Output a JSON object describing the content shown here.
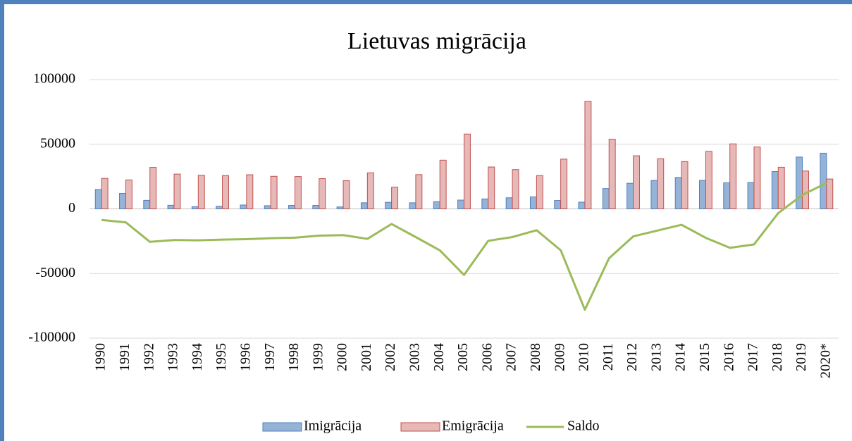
{
  "chart_data": {
    "type": "bar-line",
    "title": "Lietuvas migrācija",
    "categories": [
      "1990",
      "1991",
      "1992",
      "1993",
      "1994",
      "1995",
      "1996",
      "1997",
      "1998",
      "1999",
      "2000",
      "2001",
      "2002",
      "2003",
      "2004",
      "2005",
      "2006",
      "2007",
      "2008",
      "2009",
      "2010",
      "2011",
      "2012",
      "2013",
      "2014",
      "2015",
      "2016",
      "2017",
      "2018",
      "2019",
      "2020*"
    ],
    "series": [
      {
        "name": "Imigrācija",
        "type": "bar",
        "color": "#95b3d7",
        "edge": "#4f81bd",
        "values": [
          15000,
          12000,
          6600,
          2800,
          1700,
          2000,
          3000,
          2500,
          2700,
          2700,
          1500,
          4700,
          5100,
          4700,
          5600,
          6800,
          7700,
          8600,
          9300,
          6500,
          5200,
          15700,
          19800,
          22000,
          24300,
          22100,
          20200,
          20400,
          28900,
          40100,
          43100
        ]
      },
      {
        "name": "Emigrācija",
        "type": "bar",
        "color": "#e6b9b8",
        "edge": "#c0504d",
        "values": [
          23600,
          22400,
          32100,
          26900,
          26000,
          25800,
          26400,
          25200,
          25000,
          23400,
          21800,
          27900,
          16800,
          26500,
          37700,
          57900,
          32400,
          30400,
          25800,
          38500,
          83200,
          53900,
          41100,
          38800,
          36600,
          44500,
          50300,
          47900,
          32200,
          29300,
          23100
        ]
      },
      {
        "name": "Saldo",
        "type": "line",
        "color": "#9bbb59",
        "values": [
          -8600,
          -10400,
          -25500,
          -24100,
          -24300,
          -23800,
          -23400,
          -22700,
          -22300,
          -20700,
          -20300,
          -23200,
          -11700,
          -21800,
          -32100,
          -51100,
          -24700,
          -21800,
          -16500,
          -32000,
          -78000,
          -38200,
          -21300,
          -16800,
          -12300,
          -22400,
          -30100,
          -27500,
          -3300,
          10800,
          20000
        ]
      }
    ],
    "ylim": [
      -100000,
      100000
    ],
    "yticks": [
      -100000,
      -50000,
      0,
      50000,
      100000
    ],
    "grid": true,
    "legend": "bottom"
  }
}
